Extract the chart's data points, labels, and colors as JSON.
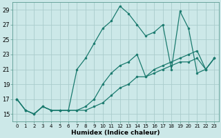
{
  "xlabel": "Humidex (Indice chaleur)",
  "background_color": "#cce8e8",
  "grid_color": "#aacccc",
  "line_color": "#1a7a6e",
  "xlim": [
    -0.5,
    23.5
  ],
  "ylim": [
    14.0,
    30.0
  ],
  "yticks": [
    15,
    17,
    19,
    21,
    23,
    25,
    27,
    29
  ],
  "xticks": [
    0,
    1,
    2,
    3,
    4,
    5,
    6,
    7,
    8,
    9,
    10,
    11,
    12,
    13,
    14,
    15,
    16,
    17,
    18,
    19,
    20,
    21,
    22,
    23
  ],
  "series": [
    [
      17.0,
      15.5,
      15.0,
      16.0,
      15.5,
      15.5,
      15.5,
      21.0,
      22.5,
      24.5,
      26.5,
      27.5,
      29.5,
      28.5,
      27.0,
      25.5,
      26.0,
      27.0,
      21.0,
      28.8,
      26.5,
      20.5,
      21.0,
      22.5
    ],
    [
      17.0,
      15.5,
      15.0,
      16.0,
      15.5,
      15.5,
      15.5,
      15.5,
      16.0,
      17.0,
      19.0,
      20.5,
      21.5,
      22.0,
      23.0,
      20.0,
      21.0,
      21.5,
      22.0,
      22.5,
      23.0,
      23.5,
      21.0,
      22.5
    ],
    [
      17.0,
      15.5,
      15.0,
      16.0,
      15.5,
      15.5,
      15.5,
      15.5,
      15.5,
      16.0,
      16.5,
      17.5,
      18.5,
      19.0,
      20.0,
      20.0,
      20.5,
      21.0,
      21.5,
      22.0,
      22.0,
      22.5,
      21.0,
      22.5
    ]
  ]
}
